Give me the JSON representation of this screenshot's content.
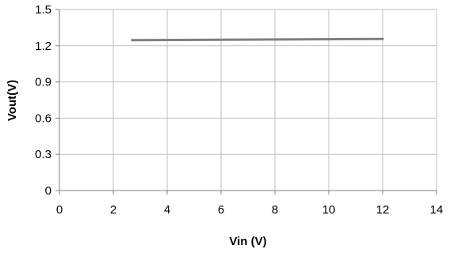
{
  "chart_data": {
    "type": "line",
    "title": "",
    "xlabel": "Vin (V)",
    "ylabel": "Vout(V)",
    "xlim": [
      0,
      14
    ],
    "ylim": [
      0,
      1.5
    ],
    "x_ticks": [
      "0",
      "2",
      "4",
      "6",
      "8",
      "10",
      "12",
      "14"
    ],
    "y_ticks": [
      "0",
      "0.3",
      "0.6",
      "0.9",
      "1.2",
      "1.5"
    ],
    "grid": true,
    "legend": "none",
    "series": [
      {
        "color": "#7f7f7f",
        "x": [
          2.7,
          12
        ],
        "y": [
          1.246,
          1.256
        ]
      }
    ]
  }
}
